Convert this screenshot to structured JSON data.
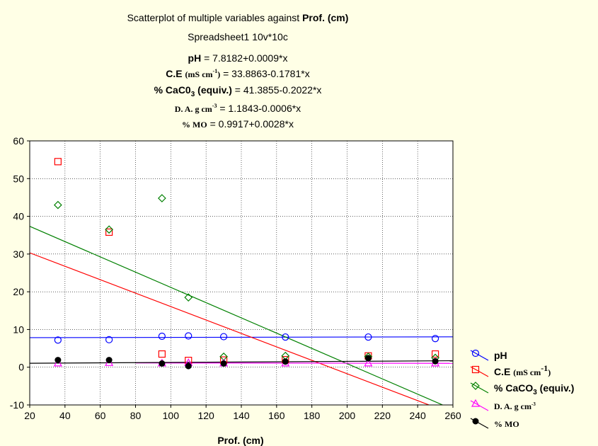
{
  "chart_data": {
    "type": "scatter",
    "title": "Scatterplot of multiple variables against ",
    "title_var": "Prof. (cm)",
    "subtitle": "Spreadsheet1 10v*10c",
    "equations": {
      "ph_name": "pH",
      "ph_eq": " = 7.8182+0.0009*x",
      "ce_name": "C.E",
      "ce_unit_pre": "(mS cm",
      "ce_unit_sup": "-1",
      "ce_unit_post": ")",
      "ce_eq": " = 33.8863-0.1781*x",
      "caco_name_pre": "% CaC0",
      "caco_name_sub": "3",
      "caco_name_post": " (equiv.)",
      "caco_eq": " = 41.3855-0.2022*x",
      "da_name_pre": "D. A. g cm",
      "da_name_sup": "-3",
      "da_eq": " = 1.1843-0.0006*x",
      "mo_name": "% MO",
      "mo_eq": " = 0.9917+0.0028*x"
    },
    "xlabel": "Prof. (cm)",
    "ylabel": "",
    "xlim": [
      20,
      260
    ],
    "ylim": [
      -10,
      60
    ],
    "xticks": [
      "20",
      "40",
      "60",
      "80",
      "100",
      "120",
      "140",
      "160",
      "180",
      "200",
      "220",
      "240",
      "260"
    ],
    "yticks": [
      "-10",
      "0",
      "10",
      "20",
      "30",
      "40",
      "50",
      "60"
    ],
    "grid": true,
    "legend_position": "right",
    "series": [
      {
        "name": "pH",
        "legend_main": "pH",
        "color": "#0000ff",
        "marker": "circle",
        "x": [
          36,
          65,
          95,
          110,
          130,
          165,
          212,
          250
        ],
        "y": [
          7.2,
          7.3,
          8.2,
          8.3,
          8.1,
          8.0,
          8.0,
          7.6
        ],
        "fit": [
          7.8182,
          0.0009
        ],
        "fit_range": [
          20,
          260
        ]
      },
      {
        "name": "C.E (mS cm-1)",
        "legend_main": "C.E ",
        "legend_unit_pre": "(mS cm",
        "legend_unit_sup": "-1",
        "legend_unit_post": ")",
        "color": "#ff0000",
        "marker": "square",
        "x": [
          36,
          65,
          95,
          110,
          130,
          165,
          212,
          250
        ],
        "y": [
          54.5,
          35.8,
          3.5,
          1.8,
          1.9,
          2.0,
          3.0,
          3.5
        ],
        "fit": [
          33.8863,
          -0.1781
        ],
        "fit_range": [
          20,
          260
        ]
      },
      {
        "name": "% CaCO3 (equiv.)",
        "legend_main_pre": "% CaCO",
        "legend_main_sub": "3",
        "legend_main_post": " (equiv.)",
        "color": "#008000",
        "marker": "diamond",
        "x": [
          36,
          65,
          95,
          110,
          130,
          165,
          212,
          250
        ],
        "y": [
          43.0,
          36.5,
          44.8,
          18.5,
          2.8,
          3.0,
          2.8,
          2.5
        ],
        "fit": [
          41.3855,
          -0.2022
        ],
        "fit_range": [
          20,
          260
        ]
      },
      {
        "name": "D. A. g cm-3",
        "legend_serif_pre": "D. A. g cm",
        "legend_serif_sup": "-3",
        "color": "#ff00ff",
        "marker": "triangle",
        "x": [
          36,
          65,
          95,
          110,
          130,
          165,
          212,
          250
        ],
        "y": [
          1.1,
          1.2,
          1.1,
          1.2,
          1.1,
          1.1,
          1.1,
          1.1
        ],
        "fit": [
          1.1843,
          -0.0006
        ],
        "fit_range": [
          80,
          260
        ]
      },
      {
        "name": "% MO",
        "legend_serif": "% MO",
        "color": "#000000",
        "marker": "filled-circle",
        "x": [
          36,
          65,
          95,
          110,
          130,
          165,
          212,
          250
        ],
        "y": [
          1.9,
          1.9,
          1.0,
          0.3,
          1.0,
          1.5,
          2.4,
          1.6
        ],
        "fit": [
          0.9917,
          0.0028
        ],
        "fit_range": [
          20,
          260
        ]
      }
    ]
  }
}
